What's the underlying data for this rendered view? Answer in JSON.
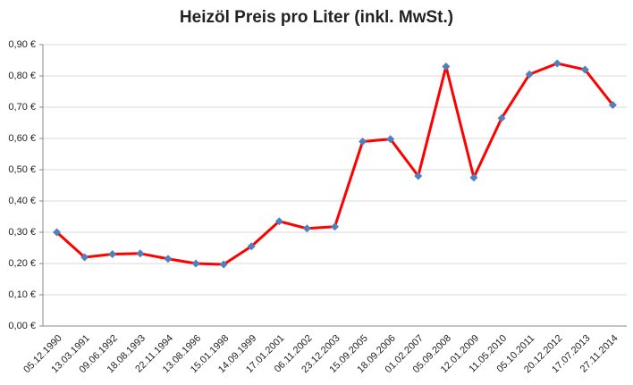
{
  "chart_data": {
    "type": "line",
    "title": "Heizöl Preis pro Liter (inkl. MwSt.)",
    "categories": [
      "05.12.1990",
      "13.03.1991",
      "09.06.1992",
      "18.08.1993",
      "22.11.1994",
      "13.08.1996",
      "15.01.1998",
      "14.09.1999",
      "17.01.2001",
      "06.11.2002",
      "23.12.2003",
      "15.09.2005",
      "18.09.2006",
      "01.02.2007",
      "05.09.2008",
      "12.01.2009",
      "11.05.2010",
      "05.10.2011",
      "20.12.2012",
      "17.07.2013",
      "27.11.2014"
    ],
    "series": [
      {
        "color": "#ff0000",
        "marker_color": "#4f81bd",
        "values": [
          0.3,
          0.22,
          0.23,
          0.232,
          0.215,
          0.2,
          0.197,
          0.255,
          0.335,
          0.312,
          0.318,
          0.59,
          0.598,
          0.48,
          0.83,
          0.475,
          0.665,
          0.805,
          0.84,
          0.82,
          0.707
        ]
      }
    ],
    "ylim": [
      0,
      0.9
    ],
    "yticks": [
      {
        "value": 0,
        "label": "0,00 €"
      },
      {
        "value": 0.1,
        "label": "0,10 €"
      },
      {
        "value": 0.2,
        "label": "0,20 €"
      },
      {
        "value": 0.3,
        "label": "0,30 €"
      },
      {
        "value": 0.4,
        "label": "0,40 €"
      },
      {
        "value": 0.5,
        "label": "0,50 €"
      },
      {
        "value": 0.6,
        "label": "0,60 €"
      },
      {
        "value": 0.7,
        "label": "0,70 €"
      },
      {
        "value": 0.8,
        "label": "0,80 €"
      },
      {
        "value": 0.9,
        "label": "0,90 €"
      }
    ],
    "grid": true
  }
}
